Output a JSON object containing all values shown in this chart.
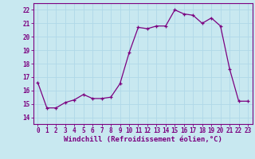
{
  "x": [
    0,
    1,
    2,
    3,
    4,
    5,
    6,
    7,
    8,
    9,
    10,
    11,
    12,
    13,
    14,
    15,
    16,
    17,
    18,
    19,
    20,
    21,
    22,
    23
  ],
  "y": [
    16.6,
    14.7,
    14.7,
    15.1,
    15.3,
    15.7,
    15.4,
    15.4,
    15.5,
    16.5,
    18.8,
    20.7,
    20.6,
    20.8,
    20.8,
    22.0,
    21.7,
    21.6,
    21.0,
    21.4,
    20.8,
    17.6,
    15.2,
    15.2
  ],
  "line_color": "#7b0080",
  "marker": "+",
  "marker_size": 3,
  "bg_color": "#c8e8f0",
  "grid_color": "#b0d8e8",
  "xlabel": "Windchill (Refroidissement éolien,°C)",
  "ylabel_ticks": [
    14,
    15,
    16,
    17,
    18,
    19,
    20,
    21,
    22
  ],
  "ylim": [
    13.5,
    22.5
  ],
  "xlim": [
    -0.5,
    23.5
  ],
  "tick_fontsize": 5.5,
  "xlabel_fontsize": 6.5,
  "label_color": "#7b0080"
}
